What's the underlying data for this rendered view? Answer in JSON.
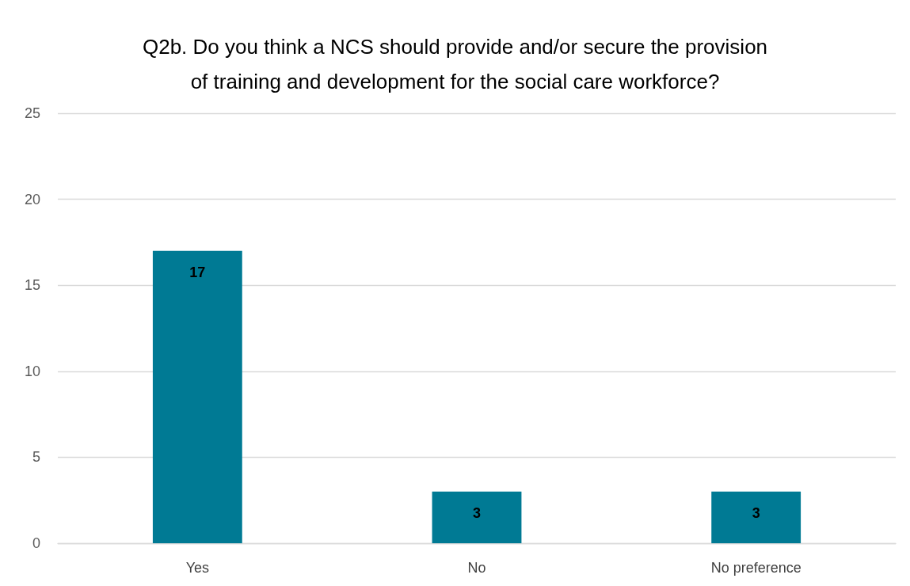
{
  "chart_data": {
    "type": "bar",
    "title": "Q2b. Do you think a NCS should provide and/or secure the provision\nof training and development for the social care workforce?",
    "categories": [
      "Yes",
      "No",
      "No preference"
    ],
    "values": [
      17,
      3,
      3
    ],
    "color": "#007a94",
    "ylim": [
      0,
      25
    ],
    "yticks": [
      0,
      5,
      10,
      15,
      20,
      25
    ],
    "grid": "y",
    "data_labels": true
  }
}
